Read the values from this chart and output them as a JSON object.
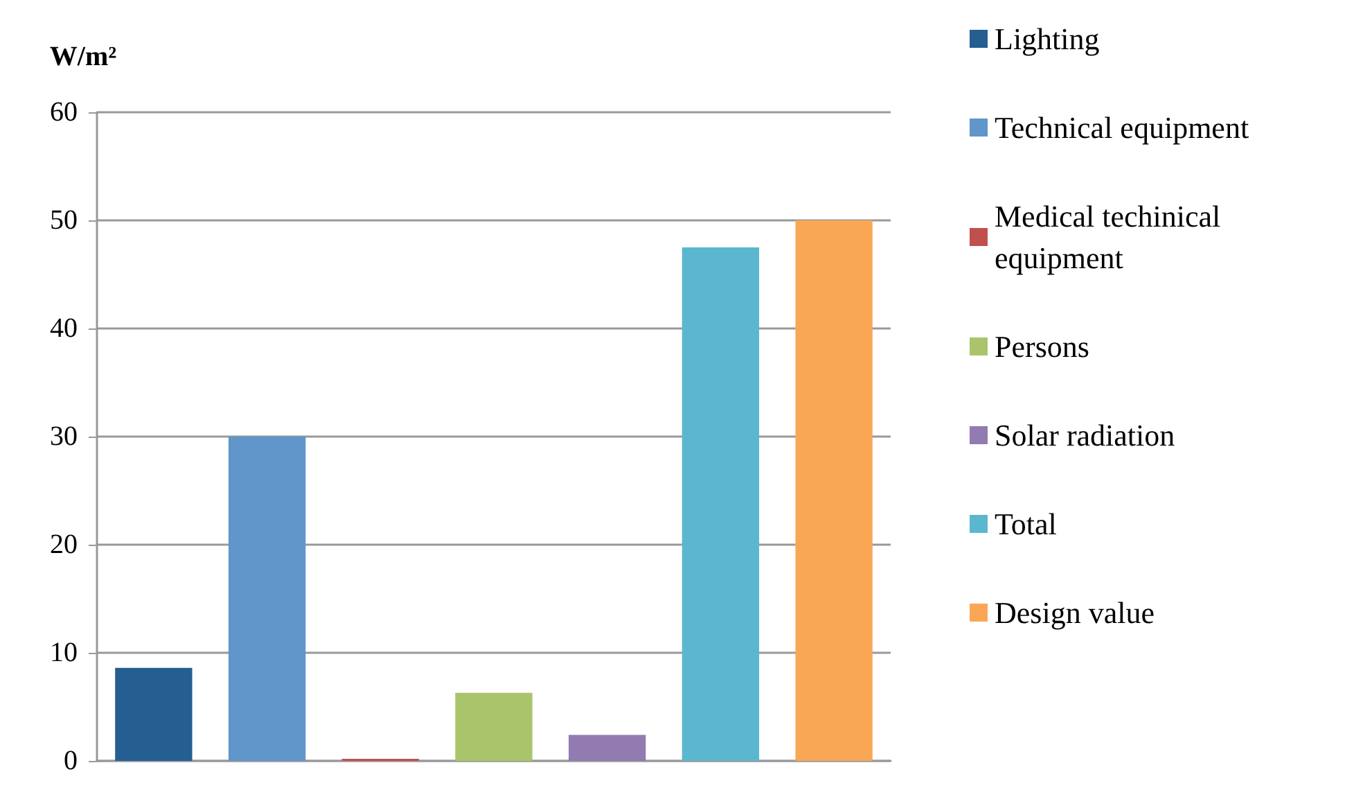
{
  "chart_data": {
    "type": "bar",
    "ylabel": "W/m²",
    "categories": [
      null,
      null,
      null,
      null,
      null,
      null,
      null
    ],
    "series": [
      {
        "name": "Lighting",
        "color": "#255e91",
        "values": [
          8.6,
          null,
          null,
          null,
          null,
          null,
          null
        ]
      },
      {
        "name": "Technical equipment",
        "color": "#6096c9",
        "values": [
          null,
          30,
          null,
          null,
          null,
          null,
          null
        ]
      },
      {
        "name": "Medical techinical equipment",
        "color": "#c0504d",
        "values": [
          null,
          null,
          0.2,
          null,
          null,
          null,
          null
        ]
      },
      {
        "name": "Persons",
        "color": "#a9c46b",
        "values": [
          null,
          null,
          null,
          6.3,
          null,
          null,
          null
        ]
      },
      {
        "name": "Solar radiation",
        "color": "#917bb0",
        "values": [
          null,
          null,
          null,
          null,
          2.4,
          null,
          null
        ]
      },
      {
        "name": "Total",
        "color": "#5bb7d0",
        "values": [
          null,
          null,
          null,
          null,
          null,
          47.5,
          null
        ]
      },
      {
        "name": "Design value",
        "color": "#f9a755",
        "values": [
          null,
          null,
          null,
          null,
          null,
          null,
          50
        ]
      }
    ],
    "ylim": [
      0,
      60
    ],
    "yticks": [
      0,
      10,
      20,
      30,
      40,
      50,
      60
    ],
    "grid": "y",
    "legend": "right"
  }
}
